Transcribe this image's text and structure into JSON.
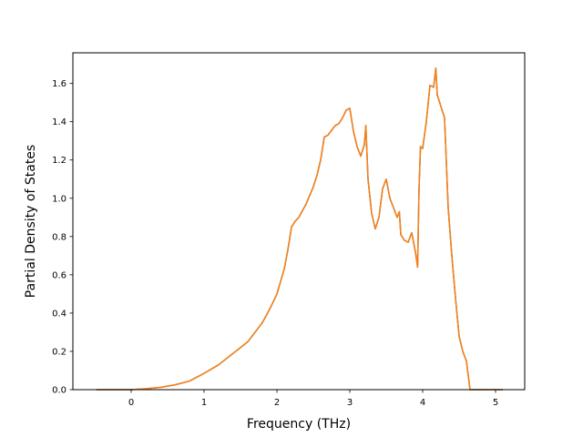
{
  "chart_data": {
    "type": "line",
    "title": "",
    "xlabel": "Frequency (THz)",
    "ylabel": "Partial Density of States",
    "xlim": [
      -0.8,
      5.4
    ],
    "ylim": [
      0.0,
      1.76
    ],
    "xticks": [
      0,
      1,
      2,
      3,
      4,
      5
    ],
    "xtick_labels": [
      "0",
      "1",
      "2",
      "3",
      "4",
      "5"
    ],
    "yticks": [
      0.0,
      0.2,
      0.4,
      0.6,
      0.8,
      1.0,
      1.2,
      1.4,
      1.6
    ],
    "ytick_labels": [
      "0.0",
      "0.2",
      "0.4",
      "0.6",
      "0.8",
      "1.0",
      "1.2",
      "1.4",
      "1.6"
    ],
    "grid": false,
    "series": [
      {
        "color": "#1f77b4",
        "x": [
          -0.48,
          0.0,
          0.2,
          0.4,
          0.6,
          0.8,
          0.9,
          1.0,
          1.2,
          1.4,
          1.6,
          1.8,
          1.9,
          2.0,
          2.1,
          2.15,
          2.2,
          2.25,
          2.3,
          2.4,
          2.5,
          2.55,
          2.6,
          2.65,
          2.7,
          2.8,
          2.85,
          2.9,
          2.95,
          3.0,
          3.05,
          3.1,
          3.15,
          3.2,
          3.22,
          3.25,
          3.3,
          3.35,
          3.4,
          3.45,
          3.5,
          3.55,
          3.6,
          3.65,
          3.68,
          3.7,
          3.75,
          3.8,
          3.85,
          3.9,
          3.93,
          3.95,
          3.97,
          4.0,
          4.05,
          4.1,
          4.15,
          4.18,
          4.2,
          4.25,
          4.3,
          4.35,
          4.4,
          4.45,
          4.5,
          4.55,
          4.6,
          4.65,
          4.68,
          5.1
        ],
        "y": [
          0.0,
          0.0,
          0.005,
          0.012,
          0.025,
          0.045,
          0.065,
          0.085,
          0.13,
          0.19,
          0.25,
          0.35,
          0.42,
          0.5,
          0.63,
          0.73,
          0.85,
          0.88,
          0.9,
          0.97,
          1.06,
          1.12,
          1.2,
          1.32,
          1.33,
          1.38,
          1.39,
          1.42,
          1.46,
          1.47,
          1.35,
          1.27,
          1.22,
          1.28,
          1.38,
          1.1,
          0.92,
          0.84,
          0.9,
          1.05,
          1.1,
          1.0,
          0.95,
          0.9,
          0.93,
          0.81,
          0.78,
          0.77,
          0.82,
          0.72,
          0.64,
          1.05,
          1.27,
          1.26,
          1.4,
          1.59,
          1.58,
          1.68,
          1.54,
          1.48,
          1.42,
          0.95,
          0.7,
          0.48,
          0.28,
          0.2,
          0.15,
          0.0,
          0.0,
          0.0
        ]
      },
      {
        "color": "#ff7f0e",
        "x": [
          -0.48,
          0.0,
          0.2,
          0.4,
          0.6,
          0.8,
          0.9,
          1.0,
          1.2,
          1.4,
          1.6,
          1.8,
          1.9,
          2.0,
          2.1,
          2.15,
          2.2,
          2.25,
          2.3,
          2.4,
          2.5,
          2.55,
          2.6,
          2.65,
          2.7,
          2.8,
          2.85,
          2.9,
          2.95,
          3.0,
          3.05,
          3.1,
          3.15,
          3.2,
          3.22,
          3.25,
          3.3,
          3.35,
          3.4,
          3.45,
          3.5,
          3.55,
          3.6,
          3.65,
          3.68,
          3.7,
          3.75,
          3.8,
          3.85,
          3.9,
          3.93,
          3.95,
          3.97,
          4.0,
          4.05,
          4.1,
          4.15,
          4.18,
          4.2,
          4.25,
          4.3,
          4.35,
          4.4,
          4.45,
          4.5,
          4.55,
          4.6,
          4.65,
          4.68,
          5.1
        ],
        "y": [
          0.0,
          0.0,
          0.005,
          0.012,
          0.025,
          0.045,
          0.065,
          0.085,
          0.13,
          0.19,
          0.25,
          0.35,
          0.42,
          0.5,
          0.63,
          0.73,
          0.85,
          0.88,
          0.9,
          0.97,
          1.06,
          1.12,
          1.2,
          1.32,
          1.33,
          1.38,
          1.39,
          1.42,
          1.46,
          1.47,
          1.35,
          1.27,
          1.22,
          1.28,
          1.38,
          1.1,
          0.92,
          0.84,
          0.9,
          1.05,
          1.1,
          1.0,
          0.95,
          0.9,
          0.93,
          0.81,
          0.78,
          0.77,
          0.82,
          0.72,
          0.64,
          1.05,
          1.27,
          1.26,
          1.4,
          1.59,
          1.58,
          1.68,
          1.54,
          1.48,
          1.42,
          0.95,
          0.7,
          0.48,
          0.28,
          0.2,
          0.15,
          0.0,
          0.0,
          0.0
        ]
      }
    ]
  }
}
